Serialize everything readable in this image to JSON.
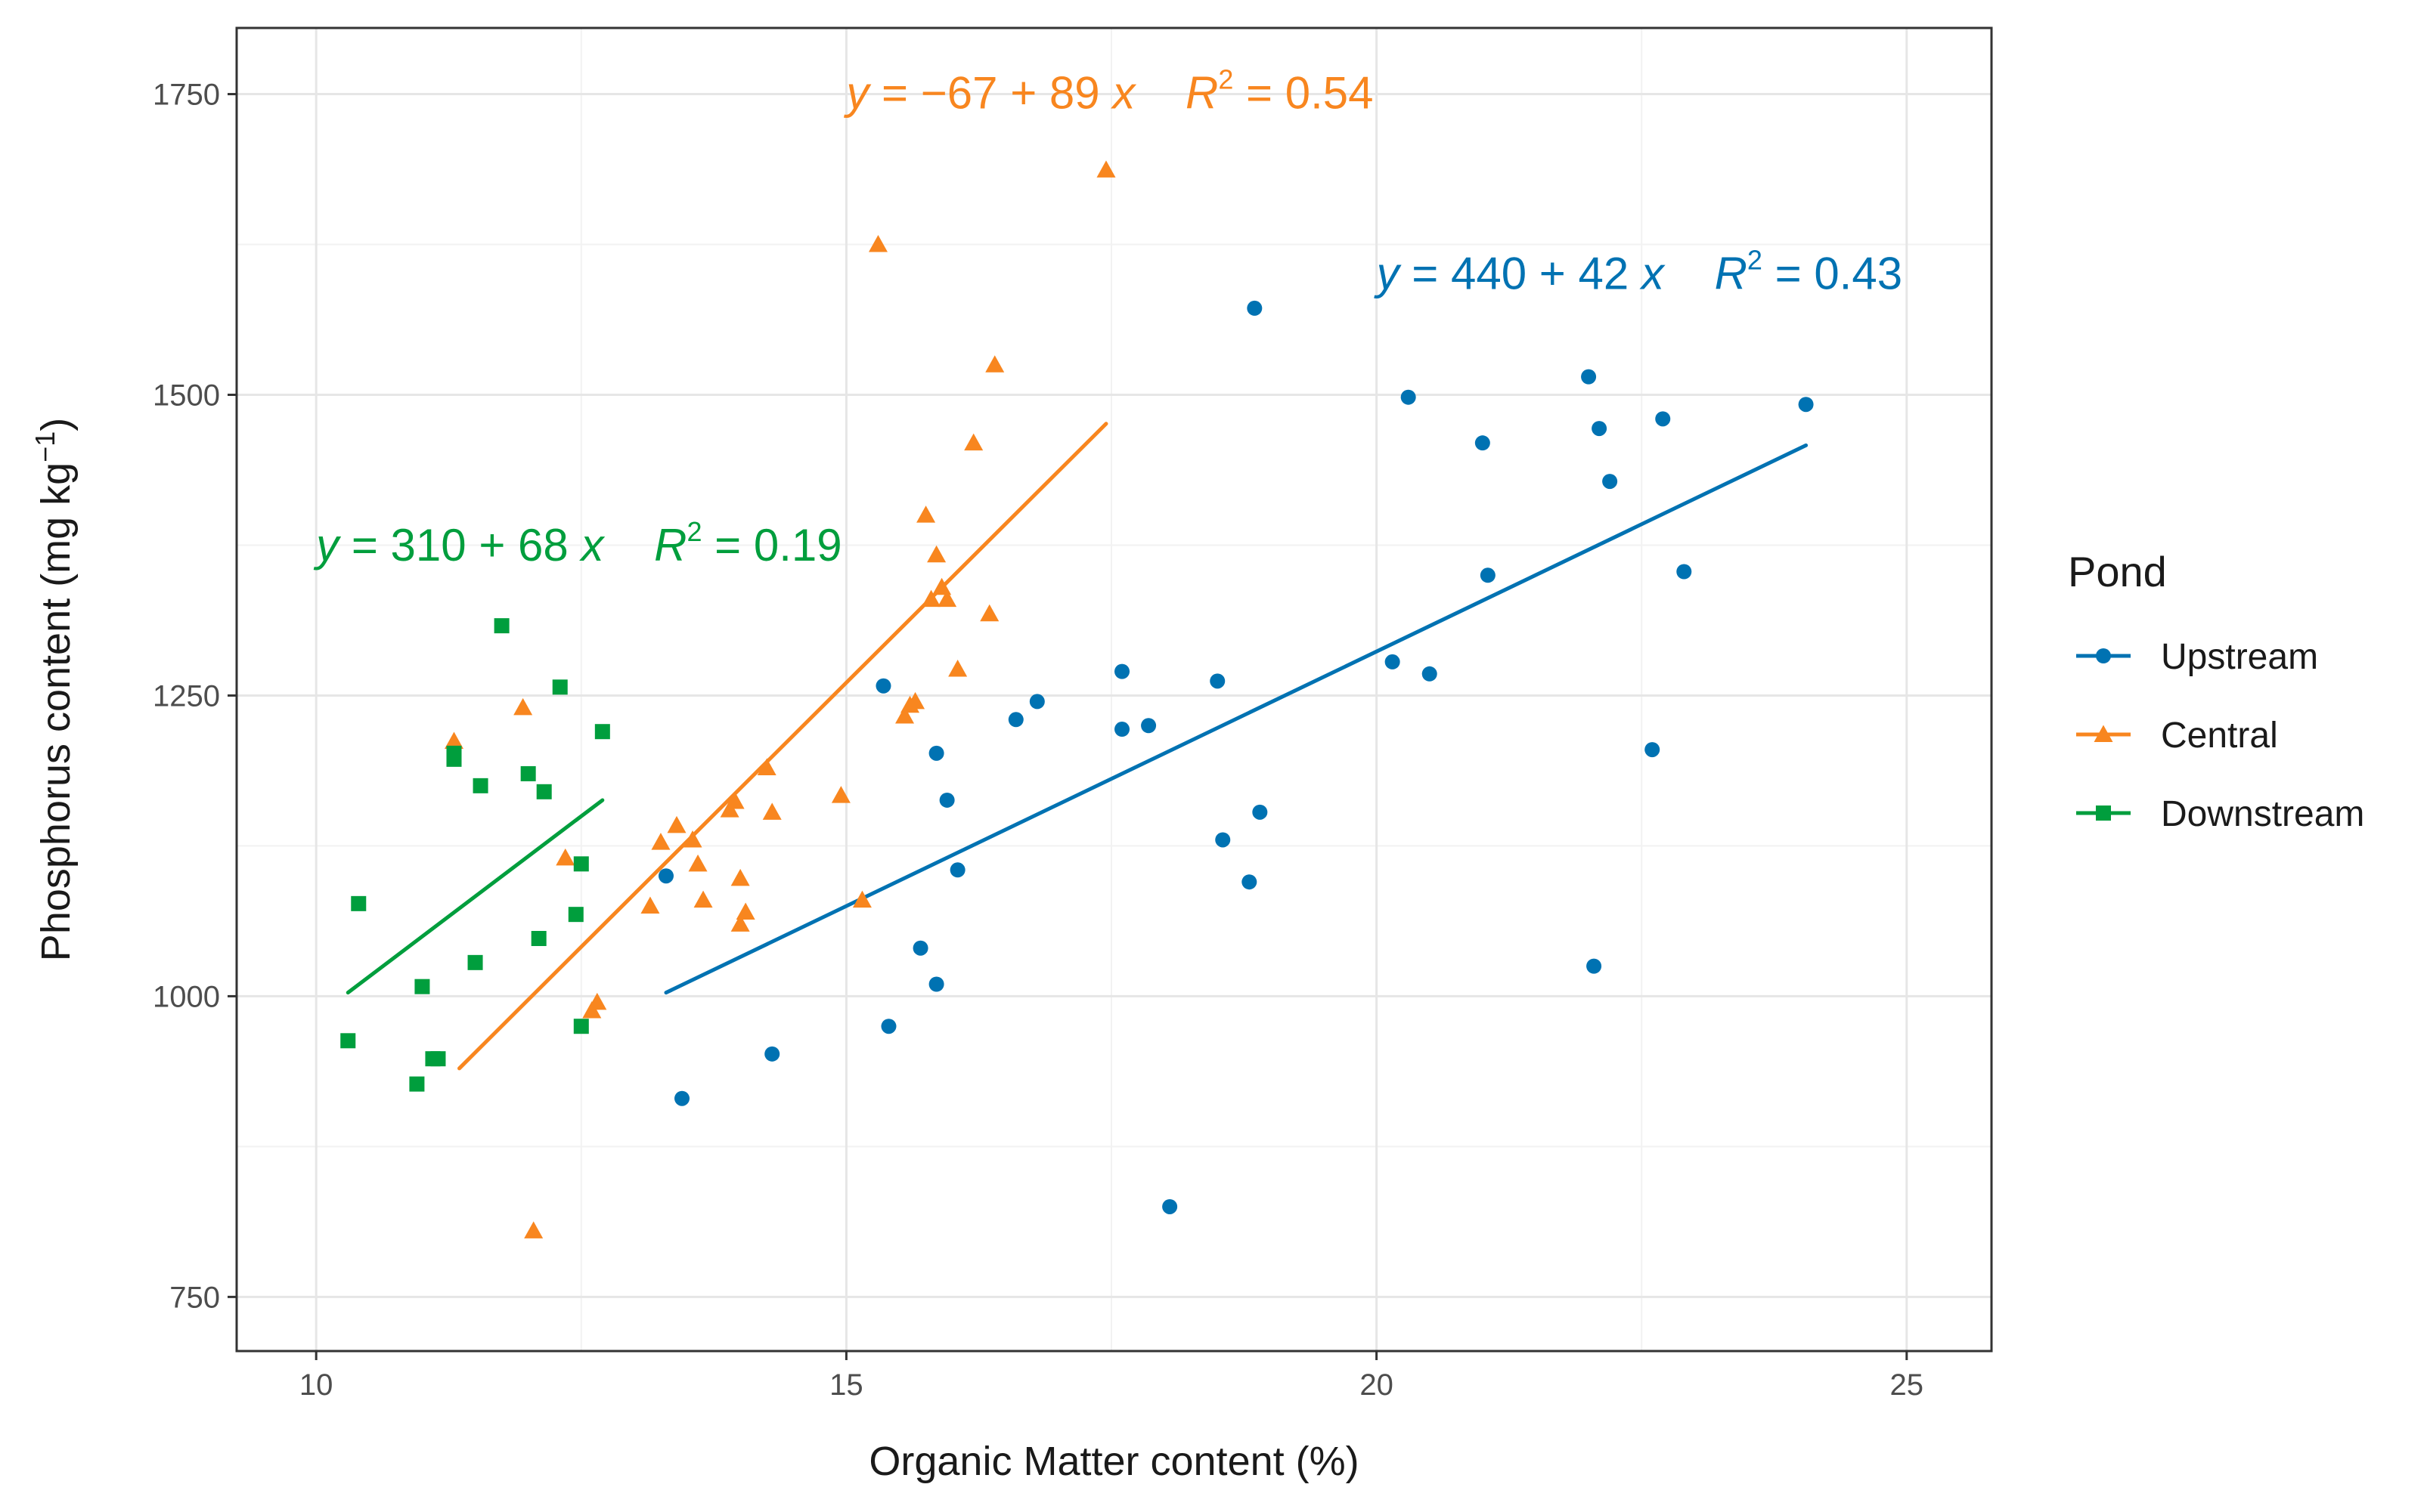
{
  "chart_data": {
    "type": "scatter",
    "xlabel": "Organic Matter content (%)",
    "ylabel": "Phosphorus content (mg kg",
    "ylabel_superscript": "−1",
    "ylabel_close": ")",
    "xlim": [
      9.25,
      25.8
    ],
    "ylim": [
      705,
      1805
    ],
    "x_ticks": [
      10,
      15,
      20,
      25
    ],
    "x_tick_labels": [
      "10",
      "15",
      "20",
      "25"
    ],
    "y_ticks": [
      750,
      1000,
      1250,
      1500,
      1750
    ],
    "y_tick_labels": [
      "750",
      "1000",
      "1250",
      "1500",
      "1750"
    ],
    "grid": true,
    "legend_title": "Pond",
    "legend_position": "right",
    "series": [
      {
        "name": "Upstream",
        "color": "#0072B2",
        "marker": "circle",
        "points": [
          [
            13.3,
            1100
          ],
          [
            13.45,
            915
          ],
          [
            14.3,
            952
          ],
          [
            15.35,
            1258
          ],
          [
            15.4,
            975
          ],
          [
            15.7,
            1040
          ],
          [
            15.85,
            1010
          ],
          [
            15.85,
            1202
          ],
          [
            15.95,
            1163
          ],
          [
            16.05,
            1105
          ],
          [
            16.6,
            1230
          ],
          [
            16.8,
            1245
          ],
          [
            17.6,
            1270
          ],
          [
            17.6,
            1222
          ],
          [
            17.85,
            1225
          ],
          [
            18.05,
            825
          ],
          [
            18.5,
            1262
          ],
          [
            18.55,
            1130
          ],
          [
            18.8,
            1095
          ],
          [
            18.85,
            1572
          ],
          [
            18.9,
            1153
          ],
          [
            20.15,
            1278
          ],
          [
            20.3,
            1498
          ],
          [
            20.5,
            1268
          ],
          [
            21.0,
            1460
          ],
          [
            21.05,
            1350
          ],
          [
            22.0,
            1515
          ],
          [
            22.05,
            1025
          ],
          [
            22.1,
            1472
          ],
          [
            22.2,
            1428
          ],
          [
            22.6,
            1205
          ],
          [
            22.7,
            1480
          ],
          [
            22.9,
            1353
          ],
          [
            24.05,
            1492
          ]
        ],
        "fit": {
          "x": [
            13.3,
            24.05
          ],
          "y": [
            1003,
            1458
          ]
        },
        "equation": {
          "lhs": "y",
          "mid": " = 440 + 42 ",
          "var": "x",
          "r": "R",
          "sup": "2",
          "rhs": " = 0.43"
        },
        "equation_anchor": {
          "x": 20.0,
          "y": 1588
        }
      },
      {
        "name": "Central",
        "color": "#F8861F",
        "marker": "triangle",
        "points": [
          [
            11.3,
            1212
          ],
          [
            11.95,
            1240
          ],
          [
            12.05,
            805
          ],
          [
            12.35,
            1115
          ],
          [
            12.6,
            988
          ],
          [
            12.65,
            995
          ],
          [
            13.15,
            1075
          ],
          [
            13.25,
            1128
          ],
          [
            13.4,
            1142
          ],
          [
            13.55,
            1130
          ],
          [
            13.6,
            1110
          ],
          [
            13.65,
            1080
          ],
          [
            13.9,
            1155
          ],
          [
            13.95,
            1162
          ],
          [
            14.0,
            1098
          ],
          [
            14.0,
            1060
          ],
          [
            14.05,
            1070
          ],
          [
            14.25,
            1190
          ],
          [
            14.3,
            1153
          ],
          [
            14.95,
            1167
          ],
          [
            15.15,
            1080
          ],
          [
            15.3,
            1625
          ],
          [
            15.55,
            1233
          ],
          [
            15.6,
            1242
          ],
          [
            15.65,
            1245
          ],
          [
            15.75,
            1400
          ],
          [
            15.8,
            1330
          ],
          [
            15.85,
            1367
          ],
          [
            15.9,
            1340
          ],
          [
            15.95,
            1330
          ],
          [
            16.05,
            1272
          ],
          [
            16.2,
            1460
          ],
          [
            16.35,
            1318
          ],
          [
            16.4,
            1525
          ],
          [
            17.45,
            1687
          ]
        ],
        "fit": {
          "x": [
            11.35,
            17.45
          ],
          "y": [
            940,
            1476
          ]
        },
        "equation": {
          "lhs": "y",
          "mid": " = −67 + 89 ",
          "var": "x",
          "r": "R",
          "sup": "2",
          "rhs": " = 0.54"
        },
        "equation_anchor": {
          "x": 15.0,
          "y": 1738
        }
      },
      {
        "name": "Downstream",
        "color": "#009E3D",
        "marker": "square",
        "points": [
          [
            10.3,
            963
          ],
          [
            10.4,
            1077
          ],
          [
            10.95,
            927
          ],
          [
            11.0,
            1008
          ],
          [
            11.1,
            948
          ],
          [
            11.15,
            948
          ],
          [
            11.3,
            1197
          ],
          [
            11.3,
            1202
          ],
          [
            11.5,
            1028
          ],
          [
            11.55,
            1175
          ],
          [
            11.75,
            1308
          ],
          [
            12.0,
            1185
          ],
          [
            12.1,
            1048
          ],
          [
            12.15,
            1170
          ],
          [
            12.3,
            1257
          ],
          [
            12.45,
            1068
          ],
          [
            12.5,
            1110
          ],
          [
            12.5,
            975
          ],
          [
            12.7,
            1220
          ]
        ],
        "fit": {
          "x": [
            10.3,
            12.7
          ],
          "y": [
            1003,
            1163
          ]
        },
        "equation": {
          "lhs": "y",
          "mid": " = 310 + 68 ",
          "var": "x",
          "r": "R",
          "sup": "2",
          "rhs": " = 0.19"
        },
        "equation_anchor": {
          "x": 10.0,
          "y": 1362
        }
      }
    ]
  }
}
